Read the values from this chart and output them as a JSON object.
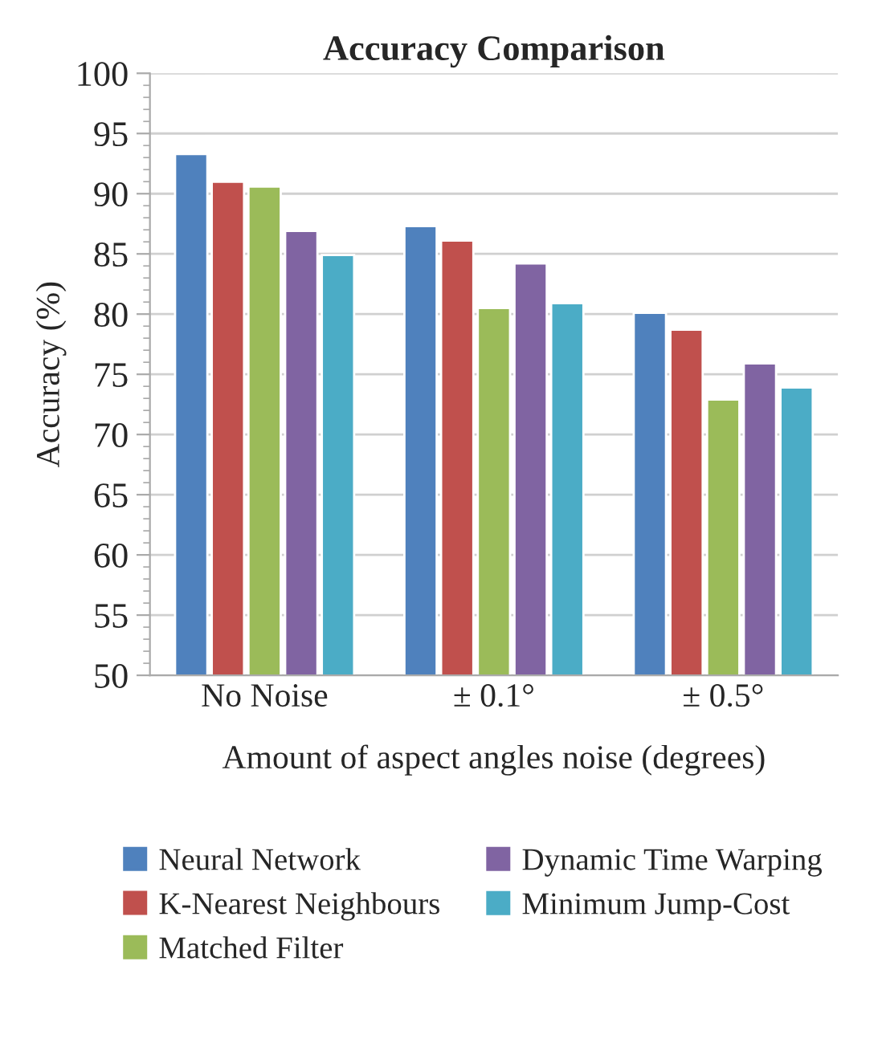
{
  "chart_data": {
    "type": "bar",
    "title": "Accuracy Comparison",
    "xlabel": "Amount of aspect angles noise (degrees)",
    "ylabel": "Accuracy (%)",
    "categories": [
      "No Noise",
      "± 0.1°",
      "± 0.5°"
    ],
    "series": [
      {
        "name": "Neural Network",
        "color": "#4f81bd",
        "values": [
          93.3,
          87.3,
          80.1
        ]
      },
      {
        "name": "K-Nearest Neighbours",
        "color": "#c0504d",
        "values": [
          91.0,
          86.1,
          78.7
        ]
      },
      {
        "name": "Matched Filter",
        "color": "#9bbb59",
        "values": [
          90.6,
          80.5,
          72.9
        ]
      },
      {
        "name": "Dynamic Time Warping",
        "color": "#8064a2",
        "values": [
          86.9,
          84.2,
          75.9
        ]
      },
      {
        "name": "Minimum Jump-Cost",
        "color": "#4bacc6",
        "values": [
          84.9,
          80.9,
          73.9
        ]
      }
    ],
    "ylim": [
      50,
      100
    ],
    "yticks": [
      50,
      55,
      60,
      65,
      70,
      75,
      80,
      85,
      90,
      95,
      100
    ],
    "grid": "y",
    "legend": "bottom"
  }
}
